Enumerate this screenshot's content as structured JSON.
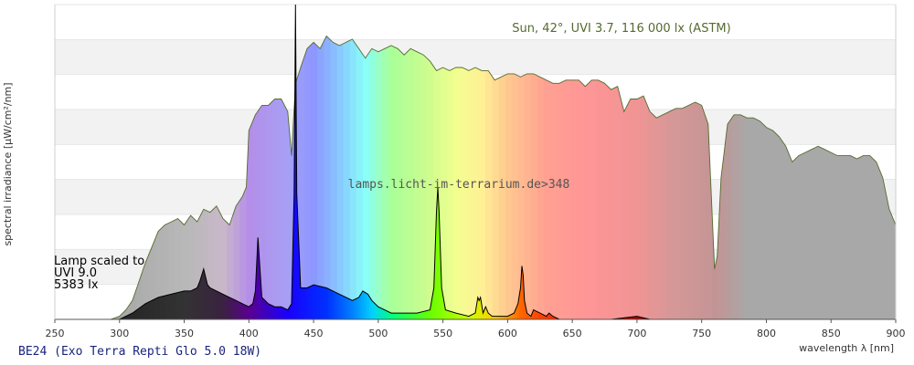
{
  "chart_data": {
    "type": "area",
    "xlabel": "wavelength λ [nm]",
    "ylabel": "spectral irradiance [µW/cm²/nm]",
    "xlim": [
      250,
      900
    ],
    "x_ticks": [
      250,
      300,
      350,
      400,
      450,
      500,
      550,
      600,
      650,
      700,
      750,
      800,
      850,
      900
    ],
    "ylim": [
      0,
      1
    ],
    "y_grid_bands": 9,
    "grid": true,
    "footer_title": "BE24 (Exo Terra Repti Glo 5.0 18W)",
    "watermark": "lamps.licht-im-terrarium.de>348",
    "sun_annotation": "Sun, 42°, UVI 3.7, 116 000 lx (ASTM)",
    "lamp_annotation": [
      "Lamp scaled to",
      "UVI 9.0",
      "5383 lx"
    ],
    "colors": {
      "sun_line": "#556b2f",
      "lamp_fill": "#000000",
      "grid_band": "#f2f2f2",
      "grey_fill": "#a8a8a8"
    },
    "series": [
      {
        "name": "Sun, 42°, UVI 3.7, 116 000 lx (ASTM)",
        "x": [
          293,
          300,
          305,
          310,
          315,
          320,
          325,
          330,
          335,
          340,
          345,
          350,
          355,
          360,
          365,
          370,
          375,
          380,
          385,
          390,
          395,
          398,
          400,
          405,
          410,
          415,
          420,
          425,
          430,
          433,
          436,
          440,
          445,
          450,
          455,
          460,
          465,
          470,
          475,
          480,
          485,
          490,
          495,
          500,
          505,
          510,
          515,
          520,
          525,
          530,
          535,
          540,
          545,
          550,
          555,
          560,
          565,
          570,
          575,
          580,
          585,
          590,
          595,
          600,
          605,
          610,
          615,
          620,
          625,
          630,
          635,
          640,
          645,
          650,
          655,
          660,
          665,
          670,
          675,
          680,
          685,
          690,
          695,
          700,
          705,
          710,
          715,
          720,
          725,
          730,
          735,
          740,
          745,
          750,
          755,
          760,
          762,
          765,
          770,
          775,
          780,
          785,
          790,
          795,
          800,
          805,
          810,
          815,
          820,
          825,
          830,
          835,
          840,
          845,
          850,
          855,
          860,
          865,
          870,
          875,
          880,
          885,
          890,
          895,
          900
        ],
        "y": [
          0.0,
          0.01,
          0.03,
          0.06,
          0.12,
          0.18,
          0.23,
          0.28,
          0.3,
          0.31,
          0.32,
          0.3,
          0.33,
          0.31,
          0.35,
          0.34,
          0.36,
          0.32,
          0.3,
          0.36,
          0.39,
          0.42,
          0.6,
          0.65,
          0.68,
          0.68,
          0.7,
          0.7,
          0.66,
          0.52,
          0.75,
          0.8,
          0.86,
          0.88,
          0.86,
          0.9,
          0.88,
          0.87,
          0.88,
          0.89,
          0.86,
          0.83,
          0.86,
          0.85,
          0.86,
          0.87,
          0.86,
          0.84,
          0.86,
          0.85,
          0.84,
          0.82,
          0.79,
          0.8,
          0.79,
          0.8,
          0.8,
          0.79,
          0.8,
          0.79,
          0.79,
          0.76,
          0.77,
          0.78,
          0.78,
          0.77,
          0.78,
          0.78,
          0.77,
          0.76,
          0.75,
          0.75,
          0.76,
          0.76,
          0.76,
          0.74,
          0.76,
          0.76,
          0.75,
          0.73,
          0.74,
          0.66,
          0.7,
          0.7,
          0.71,
          0.66,
          0.64,
          0.65,
          0.66,
          0.67,
          0.67,
          0.68,
          0.69,
          0.68,
          0.62,
          0.16,
          0.2,
          0.45,
          0.62,
          0.65,
          0.65,
          0.64,
          0.64,
          0.63,
          0.61,
          0.6,
          0.58,
          0.55,
          0.5,
          0.52,
          0.53,
          0.54,
          0.55,
          0.54,
          0.53,
          0.52,
          0.52,
          0.52,
          0.51,
          0.52,
          0.52,
          0.5,
          0.45,
          0.35,
          0.3
        ]
      },
      {
        "name": "BE24 (Exo Terra Repti Glo 5.0 18W)",
        "x": [
          295,
          300,
          310,
          320,
          330,
          340,
          350,
          355,
          360,
          362,
          365,
          368,
          370,
          375,
          380,
          385,
          390,
          395,
          400,
          403,
          405,
          407,
          410,
          415,
          420,
          425,
          430,
          433,
          435,
          436,
          437,
          440,
          445,
          450,
          460,
          470,
          480,
          485,
          488,
          492,
          495,
          500,
          510,
          520,
          530,
          540,
          543,
          545,
          546,
          547,
          549,
          552,
          560,
          570,
          575,
          577,
          578,
          579,
          581,
          583,
          585,
          588,
          590,
          595,
          600,
          605,
          608,
          610,
          611,
          612,
          613,
          615,
          618,
          620,
          625,
          630,
          632,
          635,
          640,
          650,
          660,
          680,
          700,
          710,
          720,
          740,
          760,
          780,
          800,
          850,
          900
        ],
        "y": [
          0.0,
          0.0,
          0.02,
          0.05,
          0.07,
          0.08,
          0.09,
          0.09,
          0.1,
          0.12,
          0.16,
          0.11,
          0.1,
          0.09,
          0.08,
          0.07,
          0.06,
          0.05,
          0.04,
          0.05,
          0.09,
          0.26,
          0.07,
          0.05,
          0.04,
          0.04,
          0.03,
          0.05,
          0.4,
          1.0,
          0.4,
          0.1,
          0.1,
          0.11,
          0.1,
          0.08,
          0.06,
          0.07,
          0.09,
          0.08,
          0.06,
          0.04,
          0.02,
          0.02,
          0.02,
          0.03,
          0.1,
          0.34,
          0.42,
          0.34,
          0.1,
          0.03,
          0.02,
          0.01,
          0.02,
          0.07,
          0.06,
          0.07,
          0.02,
          0.04,
          0.02,
          0.01,
          0.01,
          0.01,
          0.01,
          0.02,
          0.05,
          0.1,
          0.17,
          0.14,
          0.06,
          0.02,
          0.01,
          0.03,
          0.02,
          0.01,
          0.02,
          0.01,
          0.0,
          0.0,
          0.0,
          0.0,
          0.01,
          0.0,
          0.0,
          0.0,
          0.0,
          0.0,
          0.0,
          0.0,
          0.0
        ]
      }
    ]
  }
}
